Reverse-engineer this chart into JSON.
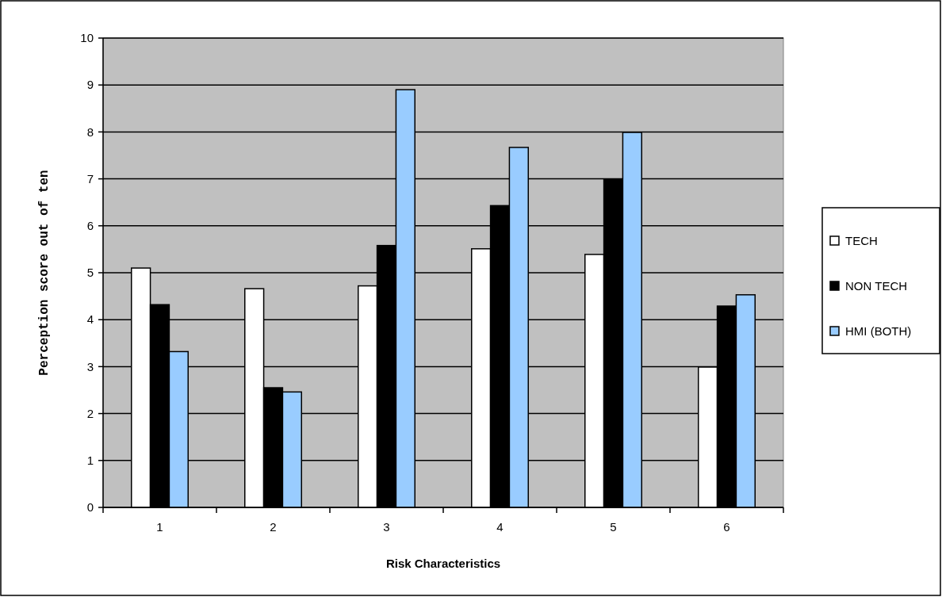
{
  "chart_data": {
    "type": "bar",
    "xlabel": "Risk Characteristics",
    "ylabel": "Perception score out of ten",
    "categories": [
      "1",
      "2",
      "3",
      "4",
      "5",
      "6"
    ],
    "series": [
      {
        "name": "TECH",
        "color": "#ffffff",
        "values": [
          5.1,
          4.66,
          4.72,
          5.51,
          5.39,
          2.99
        ]
      },
      {
        "name": "NON TECH",
        "color": "#000000",
        "values": [
          4.32,
          2.55,
          5.58,
          6.43,
          6.98,
          4.29
        ]
      },
      {
        "name": "HMI (BOTH)",
        "color": "#99ccff",
        "values": [
          3.32,
          2.46,
          8.9,
          7.67,
          7.99,
          4.53
        ]
      }
    ],
    "ylim": [
      0,
      10
    ],
    "yticks": [
      0,
      1,
      2,
      3,
      4,
      5,
      6,
      7,
      8,
      9,
      10
    ],
    "grid": "y",
    "legend": "right"
  }
}
